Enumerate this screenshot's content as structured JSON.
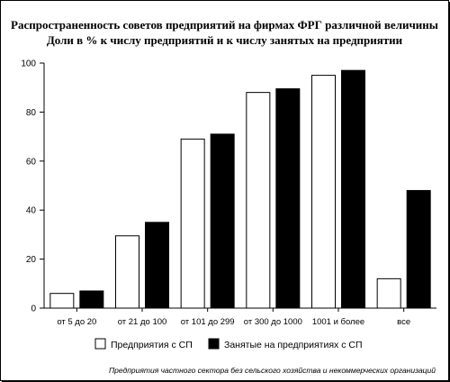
{
  "chart_data": {
    "type": "bar",
    "title": "Распространенность советов предприятий на фирмах ФРГ различной величины",
    "subtitle": "Доли в % к числу предприятий и к числу занятых на предприятии",
    "categories": [
      "от 5 до 20",
      "от 21 до 100",
      "от 101 до 299",
      "от 300 до 1000",
      "1001 и более",
      "все"
    ],
    "series": [
      {
        "name": "Предприятия с СП",
        "values": [
          6,
          29.5,
          69,
          88,
          95,
          12
        ],
        "color": "#ffffff"
      },
      {
        "name": "Занятые на предприятиях с СП",
        "values": [
          7,
          35,
          71,
          89.5,
          97,
          48
        ],
        "color": "#000000"
      }
    ],
    "yticks": [
      0,
      20,
      40,
      60,
      80,
      100
    ],
    "ylim": [
      0,
      100
    ],
    "xlabel": "",
    "ylabel": "",
    "grid": false,
    "legend_position": "bottom",
    "footnote": "Предприятия частного сектора без сельского хозяйства и некоммерческих организаций"
  }
}
